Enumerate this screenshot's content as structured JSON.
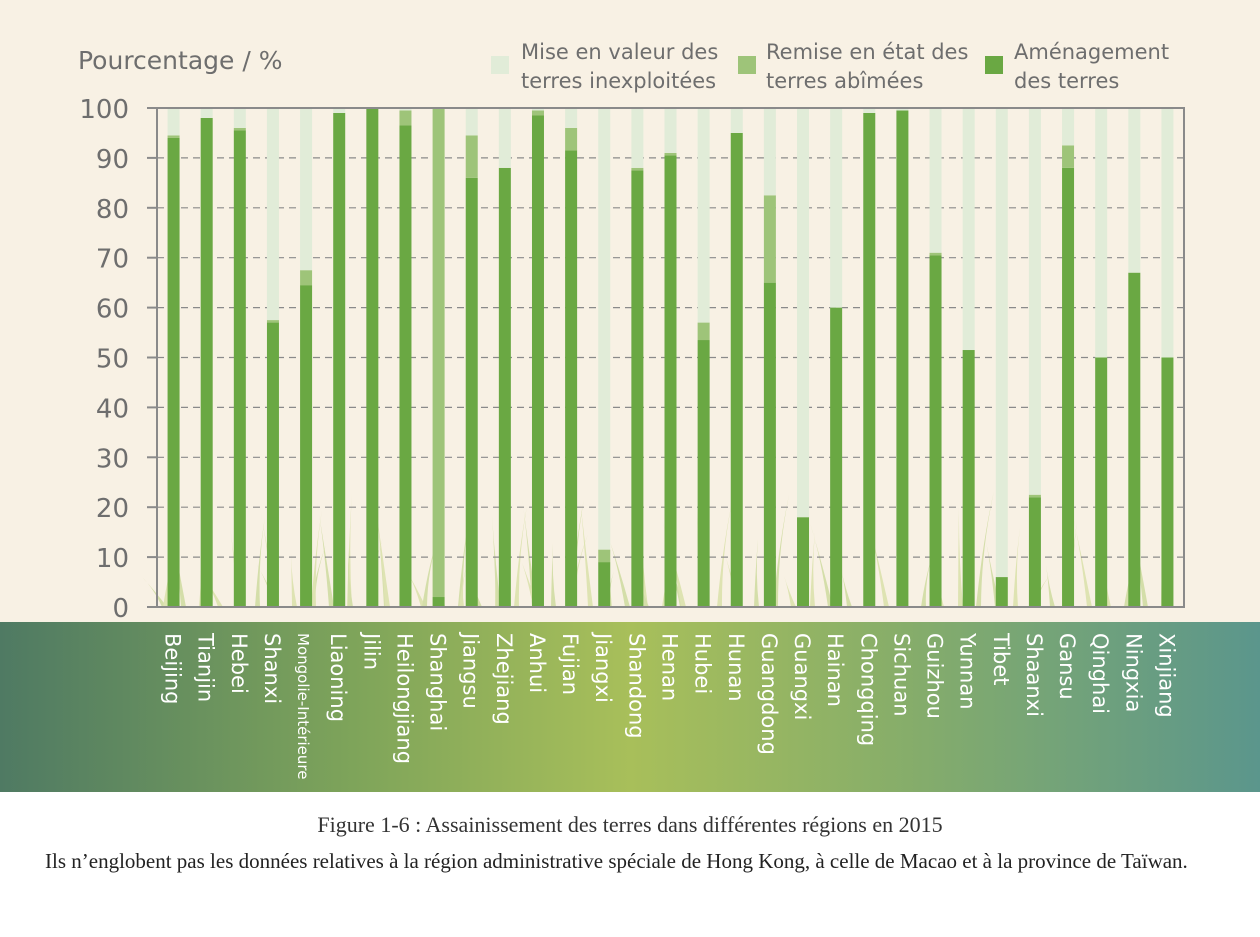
{
  "chart_data": {
    "type": "bar",
    "stacked": true,
    "ylabel": "Pourcentage / %",
    "ylim": [
      0,
      100
    ],
    "yticks": [
      0,
      10,
      20,
      30,
      40,
      50,
      60,
      70,
      80,
      90,
      100
    ],
    "grid": true,
    "legend_position": "top-right",
    "categories": [
      "Beijing",
      "Tianjin",
      "Hebei",
      "Shanxi",
      "Mongolie-Intérieure",
      "Liaoning",
      "Jilin",
      "Heilongjiang",
      "Shanghai",
      "Jiangsu",
      "Zhejiang",
      "Anhui",
      "Fujian",
      "Jiangxi",
      "Shandong",
      "Henan",
      "Hubei",
      "Hunan",
      "Guangdong",
      "Guangxi",
      "Hainan",
      "Chongqing",
      "Sichuan",
      "Guizhou",
      "Yunnan",
      "Tibet",
      "Shaanxi",
      "Gansu",
      "Qinghai",
      "Ningxia",
      "Xinjiang"
    ],
    "series": [
      {
        "name": "Aménagement des terres",
        "color": "#6aa843",
        "values": [
          94,
          98,
          95.5,
          57,
          64.5,
          99,
          100,
          96.5,
          2,
          86,
          88,
          98.5,
          91.5,
          9,
          87.5,
          90.5,
          53.5,
          95,
          65,
          18,
          60,
          99,
          99.5,
          70.5,
          51.5,
          6,
          22,
          88,
          50,
          67,
          50
        ]
      },
      {
        "name": "Remise en état des terres abîmées",
        "color": "#9ec479",
        "values": [
          0.5,
          0,
          0.5,
          0.5,
          3,
          0,
          0,
          3,
          98,
          8.5,
          0,
          1,
          4.5,
          2.5,
          0.5,
          0.5,
          3.5,
          0,
          17.5,
          0,
          0,
          0,
          0,
          0.5,
          0,
          0,
          0.5,
          4.5,
          0,
          0,
          0
        ]
      },
      {
        "name": "Mise en valeur des terres inexploitées",
        "color": "#e1ecd8",
        "values": [
          5.5,
          2,
          4,
          42.5,
          32.5,
          1,
          0,
          0.5,
          0,
          5.5,
          12,
          0.5,
          4,
          88.5,
          12,
          9,
          43,
          5,
          17.5,
          82,
          40,
          1,
          0.5,
          29,
          48.5,
          94,
          77.5,
          7.5,
          50,
          33,
          50
        ]
      }
    ],
    "legend": [
      {
        "line1": "Mise en valeur des",
        "line2": "terres inexploitées",
        "color": "#e1ecd8"
      },
      {
        "line1": "Remise en état des",
        "line2": "terres abîmées",
        "color": "#9ec479"
      },
      {
        "line1": "Aménagement",
        "line2": "des terres",
        "color": "#6aa843"
      }
    ]
  },
  "caption": "Figure 1-6 : Assainissement des terres dans différentes régions en 2015",
  "note": "Ils n’englobent pas les données relatives à la région administrative spéciale de Hong Kong, à celle de Macao et à la province de Taïwan."
}
